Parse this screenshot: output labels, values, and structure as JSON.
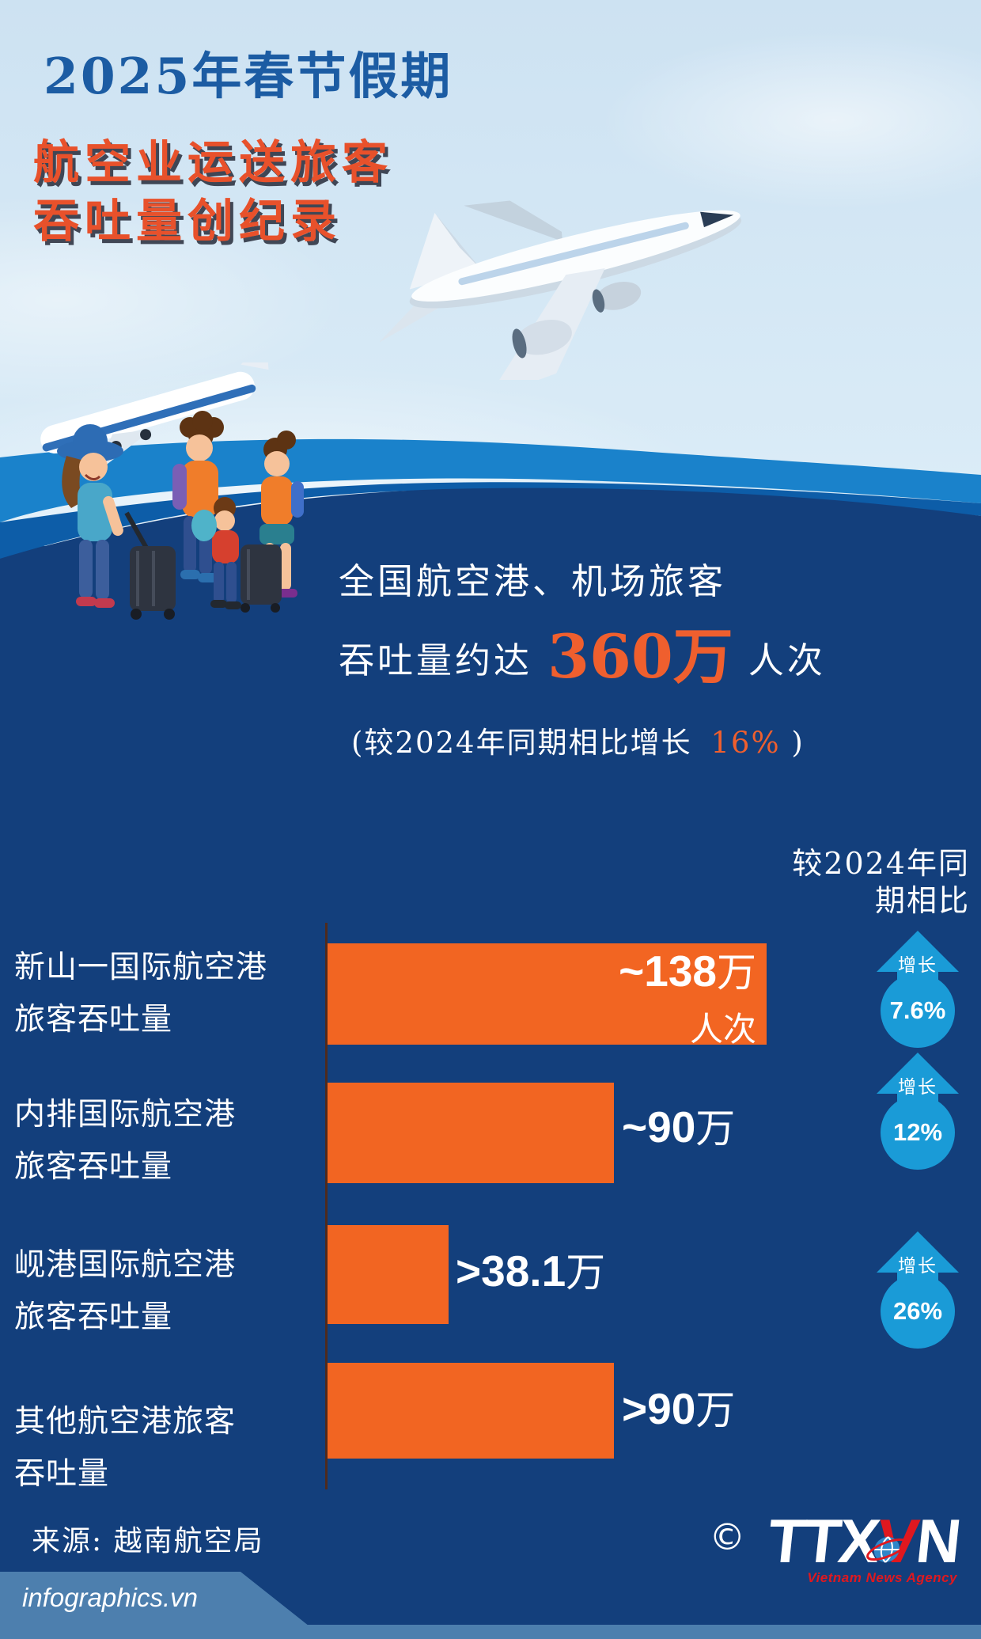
{
  "header": {
    "title": "2025年春节假期",
    "subtitle_line1": "航空业运送旅客",
    "subtitle_line2": "吞吐量创纪录"
  },
  "summary": {
    "line1": "全国航空港、机场旅客",
    "line2_prefix": "吞吐量约达",
    "total_value": "360万",
    "total_unit": "人次",
    "note_prefix": "(较2024年同期相比增长",
    "note_value": "16%",
    "note_suffix": ")"
  },
  "chart_data": {
    "type": "bar",
    "orientation": "horizontal",
    "comparison_header_line1": "较2024年同",
    "comparison_header_line2": "期相比",
    "unit": "万",
    "max_value": 138,
    "categories": [
      "新山一国际航空港旅客吞吐量",
      "内排国际航空港旅客吞吐量",
      "岘港国际航空港旅客吞吐量",
      "其他航空港旅客吞吐量"
    ],
    "values": [
      138,
      90,
      38.1,
      90
    ],
    "rows": [
      {
        "label_line1": "新山一国际航空港",
        "label_line2": "旅客吞吐量",
        "value": 138,
        "value_label": "~138",
        "value_unit": "万",
        "value_suffix": "人次",
        "growth_label": "增长",
        "growth": "7.6%",
        "growth_pct": 7.6
      },
      {
        "label_line1": "内排国际航空港",
        "label_line2": "旅客吞吐量",
        "value": 90,
        "value_label": "~90",
        "value_unit": "万",
        "growth_label": "增长",
        "growth": "12%",
        "growth_pct": 12
      },
      {
        "label_line1": "岘港国际航空港",
        "label_line2": "旅客吞吐量",
        "value": 38.1,
        "value_label": ">38.1",
        "value_unit": "万",
        "growth_label": "增长",
        "growth": "26%",
        "growth_pct": 26
      },
      {
        "label_line1": "其他航空港旅客",
        "label_line2": "吞吐量",
        "value": 90,
        "value_label": ">90",
        "value_unit": "万"
      }
    ]
  },
  "footer": {
    "source": "来源: 越南航空局",
    "copyright": "©",
    "logo_ttx": "TTX",
    "logo_v": "V",
    "logo_n": "N",
    "agency_name": "Vietnam News Agency",
    "site": "infographics.vn"
  },
  "colors": {
    "background_navy": "#133f7c",
    "sky_blue": "#cde2f2",
    "wave_bright_blue": "#1a82cb",
    "wave_mid_blue": "#0d5da8",
    "bar_orange": "#f26522",
    "accent_orange": "#ef5f2e",
    "subtitle_orange": "#e8512b",
    "title_blue": "#1c5ca3",
    "badge_blue": "#1a9bd7",
    "axis_maroon": "#4e2a1e",
    "footer_strip_blue": "#4d7fae",
    "agency_red": "#e0181f"
  }
}
